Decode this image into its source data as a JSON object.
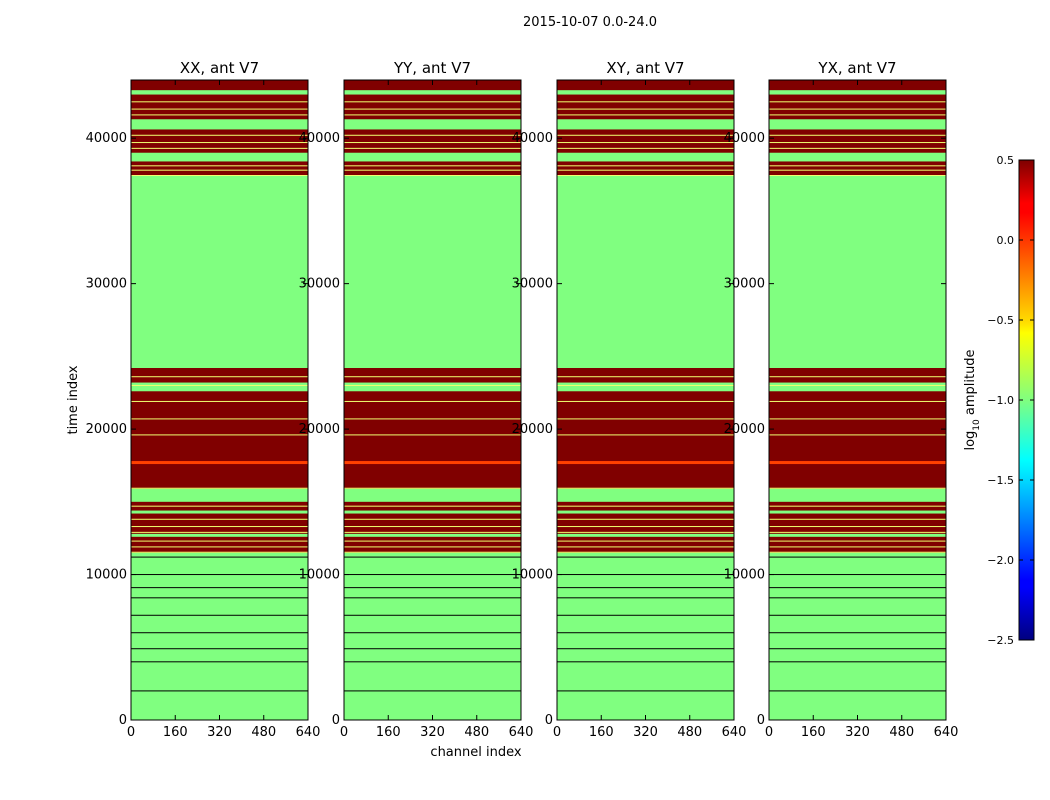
{
  "chart_data": {
    "type": "heatmap",
    "suptitle": "2015-10-07 0.0-24.0",
    "xlabel": "channel index",
    "ylabel": "time index",
    "xlim": [
      0,
      640
    ],
    "ylim": [
      0,
      44000
    ],
    "xticks": [
      0,
      160,
      320,
      480,
      640
    ],
    "yticks": [
      0,
      10000,
      20000,
      30000,
      40000
    ],
    "colorbar": {
      "label_main": "log",
      "label_sub": "10",
      "label_rest": " amplitude",
      "range": [
        -2.5,
        0.5
      ],
      "ticks": [
        0.5,
        0.0,
        -0.5,
        -1.0,
        -1.5,
        -2.0,
        -2.5
      ],
      "tick_labels": [
        "0.5",
        "0.0",
        "−0.5",
        "−1.0",
        "−1.5",
        "−2.0",
        "−2.5"
      ],
      "colormap": "jet"
    },
    "background": {
      "value": -1.0,
      "color": "#80ff80"
    },
    "colors": {
      "high": "#800000",
      "mid": "#80ff80",
      "hot": "#ff4000",
      "line": "#000000",
      "edge": "#f0ff70"
    },
    "bands": [
      {
        "from": 37400,
        "to": 44000,
        "value": 0.5
      },
      {
        "from": 15900,
        "to": 24200,
        "value": 0.5
      },
      {
        "from": 11500,
        "to": 15000,
        "value": 0.5
      }
    ],
    "gaps": [
      {
        "from": 43000,
        "to": 43300
      },
      {
        "from": 41300,
        "to": 40600
      },
      {
        "from": 39000,
        "to": 38400
      },
      {
        "from": 23200,
        "to": 22600
      },
      {
        "from": 14400,
        "to": 14200
      },
      {
        "from": 12800,
        "to": 12600
      }
    ],
    "hot_rows": [
      17700
    ],
    "thin_lines": [
      42500,
      42000,
      41600,
      40200,
      39700,
      39300,
      38100,
      37800,
      23600,
      23000,
      21900,
      20700,
      19600,
      14700,
      13800,
      13300,
      12900,
      12300,
      11900,
      11200,
      10000,
      9100,
      8400,
      7200,
      6000,
      4900,
      4000,
      2000
    ],
    "panels": [
      {
        "title": "XX, ant V7"
      },
      {
        "title": "YY, ant V7"
      },
      {
        "title": "XY, ant V7"
      },
      {
        "title": "YX, ant V7"
      }
    ]
  }
}
